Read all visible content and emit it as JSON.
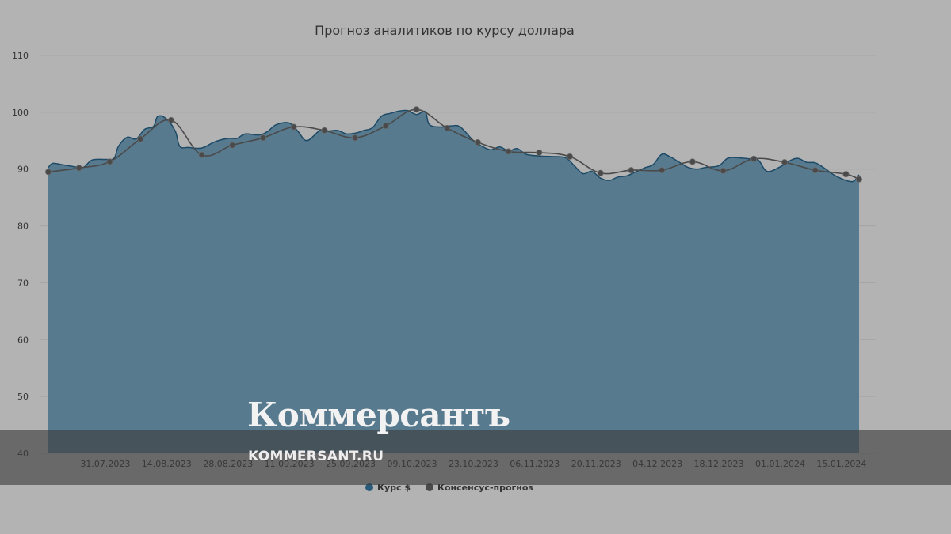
{
  "chart_data": {
    "type": "area",
    "title": "Прогноз аналитиков по курсу доллара",
    "xlabel": "",
    "ylabel": "",
    "ylim": [
      40,
      110
    ],
    "y_ticks": [
      40,
      50,
      60,
      70,
      80,
      90,
      100,
      110
    ],
    "x_range": [
      "2023-07-18",
      "2024-01-19"
    ],
    "x_ticks": [
      "31.07.2023",
      "14.08.2023",
      "28.08.2023",
      "11.09.2023",
      "25.09.2023",
      "09.10.2023",
      "23.10.2023",
      "06.11.2023",
      "20.11.2023",
      "04.12.2023",
      "18.12.2023",
      "01.01.2024",
      "15.01.2024"
    ],
    "grid": true,
    "legend_position": "bottom-center",
    "series": [
      {
        "name": "Курс $",
        "type": "area",
        "color": "#2a5a7a",
        "points": [
          [
            "2023-07-18",
            90.3
          ],
          [
            "2023-07-19",
            91.0
          ],
          [
            "2023-07-21",
            90.8
          ],
          [
            "2023-07-24",
            90.4
          ],
          [
            "2023-07-26",
            90.3
          ],
          [
            "2023-07-28",
            91.6
          ],
          [
            "2023-07-31",
            91.7
          ],
          [
            "2023-08-02",
            91.9
          ],
          [
            "2023-08-03",
            94.0
          ],
          [
            "2023-08-05",
            95.6
          ],
          [
            "2023-08-07",
            95.3
          ],
          [
            "2023-08-09",
            97.0
          ],
          [
            "2023-08-11",
            97.5
          ],
          [
            "2023-08-12",
            99.3
          ],
          [
            "2023-08-14",
            98.8
          ],
          [
            "2023-08-16",
            96.6
          ],
          [
            "2023-08-17",
            94.0
          ],
          [
            "2023-08-19",
            93.8
          ],
          [
            "2023-08-22",
            93.7
          ],
          [
            "2023-08-25",
            94.8
          ],
          [
            "2023-08-28",
            95.4
          ],
          [
            "2023-08-30",
            95.4
          ],
          [
            "2023-09-01",
            96.2
          ],
          [
            "2023-09-04",
            96.0
          ],
          [
            "2023-09-06",
            96.6
          ],
          [
            "2023-09-08",
            97.8
          ],
          [
            "2023-09-11",
            98.1
          ],
          [
            "2023-09-13",
            96.6
          ],
          [
            "2023-09-15",
            95.0
          ],
          [
            "2023-09-18",
            96.8
          ],
          [
            "2023-09-20",
            96.7
          ],
          [
            "2023-09-22",
            96.8
          ],
          [
            "2023-09-24",
            96.2
          ],
          [
            "2023-09-26",
            96.3
          ],
          [
            "2023-09-28",
            96.8
          ],
          [
            "2023-09-30",
            97.3
          ],
          [
            "2023-10-02",
            99.3
          ],
          [
            "2023-10-04",
            99.8
          ],
          [
            "2023-10-06",
            100.2
          ],
          [
            "2023-10-08",
            100.3
          ],
          [
            "2023-10-10",
            99.6
          ],
          [
            "2023-10-12",
            100.1
          ],
          [
            "2023-10-13",
            97.8
          ],
          [
            "2023-10-16",
            97.4
          ],
          [
            "2023-10-18",
            97.6
          ],
          [
            "2023-10-20",
            97.4
          ],
          [
            "2023-10-23",
            95.0
          ],
          [
            "2023-10-25",
            94.0
          ],
          [
            "2023-10-27",
            93.4
          ],
          [
            "2023-10-29",
            93.9
          ],
          [
            "2023-10-31",
            93.2
          ],
          [
            "2023-11-02",
            93.6
          ],
          [
            "2023-11-04",
            92.6
          ],
          [
            "2023-11-07",
            92.3
          ],
          [
            "2023-11-10",
            92.2
          ],
          [
            "2023-11-13",
            92.0
          ],
          [
            "2023-11-15",
            90.6
          ],
          [
            "2023-11-17",
            89.2
          ],
          [
            "2023-11-19",
            89.6
          ],
          [
            "2023-11-21",
            88.4
          ],
          [
            "2023-11-23",
            88.0
          ],
          [
            "2023-11-25",
            88.6
          ],
          [
            "2023-11-27",
            88.8
          ],
          [
            "2023-11-29",
            89.5
          ],
          [
            "2023-12-01",
            90.2
          ],
          [
            "2023-12-03",
            90.8
          ],
          [
            "2023-12-05",
            92.6
          ],
          [
            "2023-12-07",
            92.1
          ],
          [
            "2023-12-09",
            91.2
          ],
          [
            "2023-12-11",
            90.3
          ],
          [
            "2023-12-13",
            90.0
          ],
          [
            "2023-12-15",
            90.3
          ],
          [
            "2023-12-18",
            90.6
          ],
          [
            "2023-12-20",
            91.9
          ],
          [
            "2023-12-22",
            92.0
          ],
          [
            "2023-12-25",
            91.8
          ],
          [
            "2023-12-27",
            91.6
          ],
          [
            "2023-12-29",
            89.6
          ],
          [
            "2024-01-01",
            90.4
          ],
          [
            "2024-01-03",
            91.4
          ],
          [
            "2024-01-05",
            91.9
          ],
          [
            "2024-01-07",
            91.2
          ],
          [
            "2024-01-09",
            91.1
          ],
          [
            "2024-01-11",
            90.2
          ],
          [
            "2024-01-13",
            89.1
          ],
          [
            "2024-01-15",
            88.3
          ],
          [
            "2024-01-17",
            87.8
          ],
          [
            "2024-01-18",
            88.0
          ],
          [
            "2024-01-19",
            89.0
          ]
        ]
      },
      {
        "name": "Консенсус-прогноз",
        "type": "line",
        "color": "#4a4a4a",
        "points": [
          [
            "2023-07-18",
            89.5
          ],
          [
            "2023-07-25",
            90.2
          ],
          [
            "2023-08-01",
            91.3
          ],
          [
            "2023-08-08",
            95.3
          ],
          [
            "2023-08-15",
            98.6
          ],
          [
            "2023-08-22",
            92.5
          ],
          [
            "2023-08-29",
            94.2
          ],
          [
            "2023-09-05",
            95.5
          ],
          [
            "2023-09-12",
            97.4
          ],
          [
            "2023-09-19",
            96.8
          ],
          [
            "2023-09-26",
            95.5
          ],
          [
            "2023-10-03",
            97.6
          ],
          [
            "2023-10-10",
            100.5
          ],
          [
            "2023-10-17",
            97.2
          ],
          [
            "2023-10-24",
            94.7
          ],
          [
            "2023-10-31",
            93.1
          ],
          [
            "2023-11-07",
            92.9
          ],
          [
            "2023-11-14",
            92.2
          ],
          [
            "2023-11-21",
            89.3
          ],
          [
            "2023-11-28",
            89.8
          ],
          [
            "2023-12-05",
            89.8
          ],
          [
            "2023-12-12",
            91.3
          ],
          [
            "2023-12-19",
            89.7
          ],
          [
            "2023-12-26",
            91.8
          ],
          [
            "2024-01-02",
            91.2
          ],
          [
            "2024-01-09",
            89.8
          ],
          [
            "2024-01-16",
            89.1
          ],
          [
            "2024-01-19",
            88.2
          ]
        ]
      }
    ]
  },
  "watermark": {
    "name": "Коммерсантъ",
    "url": "KOMMERSANT.RU"
  },
  "colors": {
    "background": "#b3b3b3",
    "area_fill": "#577a8f",
    "area_line": "#1d4a66",
    "consensus_line": "#4a4a4a",
    "grid": "#a4a4a4"
  }
}
